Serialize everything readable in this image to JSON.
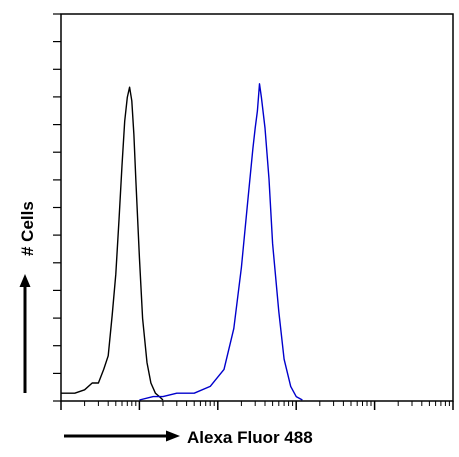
{
  "chart_data": {
    "type": "line",
    "title": "",
    "xlabel": "Alexa Fluor 488",
    "ylabel": "# Cells",
    "x_scale": "log",
    "xlim": [
      1,
      100000
    ],
    "grid": false,
    "legend": "none",
    "series": [
      {
        "color": "#000000",
        "points": [
          [
            1.0,
            0.02
          ],
          [
            1.5,
            0.02
          ],
          [
            2.0,
            0.03
          ],
          [
            2.5,
            0.05
          ],
          [
            3.0,
            0.05
          ],
          [
            3.5,
            0.09
          ],
          [
            4.0,
            0.13
          ],
          [
            4.5,
            0.25
          ],
          [
            5.0,
            0.37
          ],
          [
            5.5,
            0.53
          ],
          [
            6.0,
            0.69
          ],
          [
            6.5,
            0.82
          ],
          [
            7.0,
            0.89
          ],
          [
            7.5,
            0.92
          ],
          [
            8.0,
            0.88
          ],
          [
            8.5,
            0.78
          ],
          [
            9.0,
            0.65
          ],
          [
            10.0,
            0.42
          ],
          [
            11.0,
            0.24
          ],
          [
            12.5,
            0.11
          ],
          [
            14.0,
            0.05
          ],
          [
            16.0,
            0.02
          ],
          [
            18.0,
            0.01
          ],
          [
            20.0,
            0.0
          ]
        ]
      },
      {
        "color": "#0000cc",
        "points": [
          [
            10,
            0.0
          ],
          [
            15,
            0.01
          ],
          [
            20,
            0.01
          ],
          [
            30,
            0.02
          ],
          [
            50,
            0.02
          ],
          [
            80,
            0.04
          ],
          [
            120,
            0.09
          ],
          [
            160,
            0.21
          ],
          [
            200,
            0.39
          ],
          [
            240,
            0.58
          ],
          [
            280,
            0.74
          ],
          [
            300,
            0.8
          ],
          [
            320,
            0.85
          ],
          [
            340,
            0.93
          ],
          [
            360,
            0.89
          ],
          [
            400,
            0.8
          ],
          [
            450,
            0.65
          ],
          [
            500,
            0.46
          ],
          [
            600,
            0.26
          ],
          [
            700,
            0.12
          ],
          [
            850,
            0.04
          ],
          [
            1000,
            0.01
          ],
          [
            1200,
            0.0
          ]
        ]
      }
    ]
  },
  "colors": {
    "axis": "#000000",
    "background": "#ffffff"
  }
}
